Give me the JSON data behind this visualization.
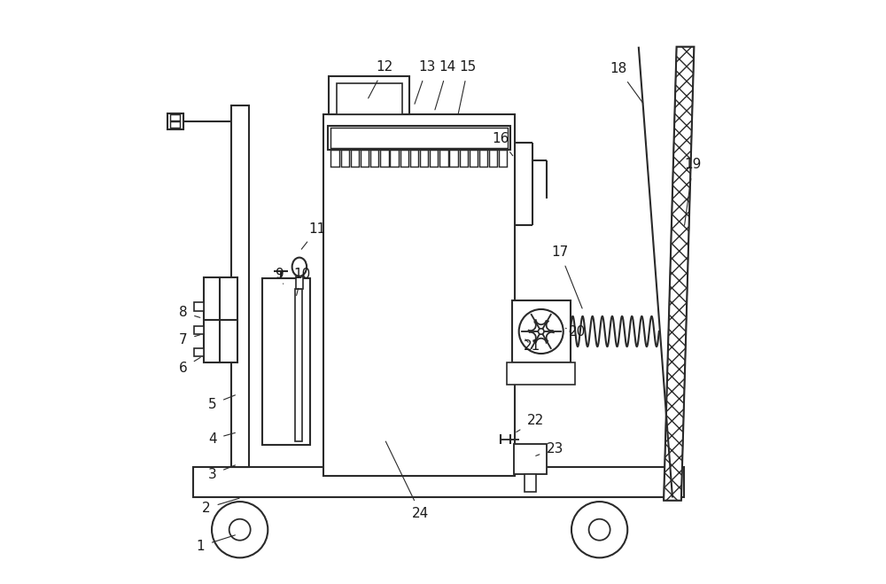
{
  "line_color": "#2a2a2a",
  "lw": 1.5,
  "fig_width": 10.0,
  "fig_height": 6.59,
  "label_fontsize": 11,
  "label_color": "#1a1a1a",
  "label_positions": {
    "1": [
      0.085,
      0.065,
      0.148,
      0.085
    ],
    "2": [
      0.095,
      0.13,
      0.155,
      0.148
    ],
    "3": [
      0.105,
      0.188,
      0.148,
      0.205
    ],
    "4": [
      0.105,
      0.248,
      0.148,
      0.26
    ],
    "5": [
      0.105,
      0.308,
      0.148,
      0.325
    ],
    "6": [
      0.055,
      0.37,
      0.088,
      0.39
    ],
    "7": [
      0.055,
      0.418,
      0.088,
      0.428
    ],
    "8": [
      0.055,
      0.465,
      0.088,
      0.455
    ],
    "9": [
      0.22,
      0.53,
      0.228,
      0.51
    ],
    "10": [
      0.258,
      0.53,
      0.248,
      0.49
    ],
    "11": [
      0.285,
      0.608,
      0.255,
      0.57
    ],
    "12": [
      0.4,
      0.885,
      0.37,
      0.828
    ],
    "13": [
      0.473,
      0.885,
      0.45,
      0.818
    ],
    "14": [
      0.508,
      0.885,
      0.485,
      0.808
    ],
    "15": [
      0.543,
      0.885,
      0.525,
      0.8
    ],
    "16": [
      0.598,
      0.762,
      0.622,
      0.73
    ],
    "17": [
      0.7,
      0.568,
      0.74,
      0.468
    ],
    "18": [
      0.8,
      0.882,
      0.845,
      0.82
    ],
    "19": [
      0.928,
      0.718,
      0.913,
      0.61
    ],
    "20": [
      0.73,
      0.432,
      0.71,
      0.438
    ],
    "21": [
      0.652,
      0.408,
      0.638,
      0.422
    ],
    "22": [
      0.658,
      0.28,
      0.622,
      0.258
    ],
    "23": [
      0.692,
      0.232,
      0.655,
      0.218
    ],
    "24": [
      0.462,
      0.12,
      0.4,
      0.248
    ]
  }
}
